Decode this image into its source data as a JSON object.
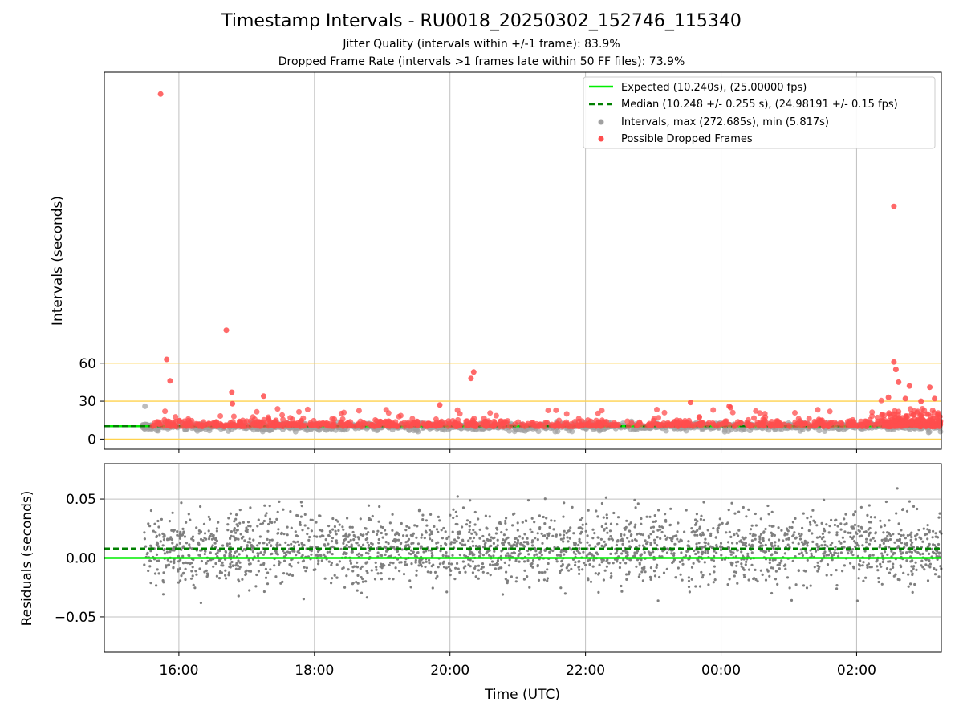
{
  "chart_data": [
    {
      "type": "scatter",
      "title": "Timestamp Intervals - RU0018_20250302_152746_115340",
      "subtitle_1": "Jitter Quality (intervals within +/-1 frame): 83.9%",
      "subtitle_2": "Dropped Frame Rate (intervals >1 frames late within 50 FF files): 73.9%",
      "ylabel": "Intervals (seconds)",
      "xlim_hours": [
        14.9,
        27.25
      ],
      "ylim": [
        -8,
        290
      ],
      "yticks": [
        0,
        30,
        60
      ],
      "ytick_labels": [
        "0",
        "30",
        "60"
      ],
      "grid": true,
      "reference_lines": [
        0,
        30,
        60
      ],
      "reference_color": "#ffd24d",
      "legend_position": "top-right",
      "legend": [
        {
          "label": "Expected (10.240s), (25.00000 fps)",
          "style": "solid-line",
          "color": "#00ee00"
        },
        {
          "label": "Median (10.248 +/- 0.255 s), (24.98191 +/- 0.15 fps)",
          "style": "dashed-line",
          "color": "#008000"
        },
        {
          "label": "Intervals, max (272.685s), min (5.817s)",
          "style": "marker",
          "color": "#a0a0a0"
        },
        {
          "label": "Possible Dropped Frames",
          "style": "marker",
          "color": "#ff4d4d"
        }
      ],
      "expected_interval": 10.24,
      "median_interval": 10.248,
      "interval_max": 272.685,
      "interval_min": 5.817,
      "data_start_hour": 15.46,
      "data_end_hour": 27.25,
      "dropped_frame_outliers": [
        {
          "t": 15.73,
          "y": 272.7
        },
        {
          "t": 15.82,
          "y": 63
        },
        {
          "t": 15.87,
          "y": 46
        },
        {
          "t": 16.7,
          "y": 86
        },
        {
          "t": 16.78,
          "y": 37
        },
        {
          "t": 16.79,
          "y": 28
        },
        {
          "t": 17.25,
          "y": 34
        },
        {
          "t": 20.31,
          "y": 48
        },
        {
          "t": 20.35,
          "y": 53
        },
        {
          "t": 19.85,
          "y": 27
        },
        {
          "t": 23.55,
          "y": 29
        },
        {
          "t": 24.12,
          "y": 26
        },
        {
          "t": 24.14,
          "y": 25
        },
        {
          "t": 26.55,
          "y": 184
        },
        {
          "t": 26.55,
          "y": 61
        },
        {
          "t": 26.62,
          "y": 45
        },
        {
          "t": 26.78,
          "y": 42
        },
        {
          "t": 27.08,
          "y": 41
        },
        {
          "t": 26.72,
          "y": 32
        },
        {
          "t": 27.15,
          "y": 32
        },
        {
          "t": 26.47,
          "y": 33
        },
        {
          "t": 26.58,
          "y": 55
        },
        {
          "t": 26.95,
          "y": 30
        }
      ]
    },
    {
      "type": "scatter",
      "ylabel": "Residuals (seconds)",
      "xlabel": "Time (UTC)",
      "xlim_hours": [
        14.9,
        27.25
      ],
      "ylim": [
        -0.08,
        0.08
      ],
      "yticks": [
        -0.05,
        0,
        0.05
      ],
      "ytick_labels": [
        "−0.05",
        "0.00",
        "0.05"
      ],
      "xticks_hours": [
        16,
        18,
        20,
        22,
        24,
        26
      ],
      "xtick_labels": [
        "16:00",
        "18:00",
        "20:00",
        "22:00",
        "00:00",
        "02:00"
      ],
      "grid": true,
      "expected_residual": 0.0,
      "median_residual": 0.008,
      "residual_spread": 0.015,
      "point_color": "#7f7f7f",
      "expected_color": "#00ee00",
      "median_color": "#008000"
    }
  ]
}
